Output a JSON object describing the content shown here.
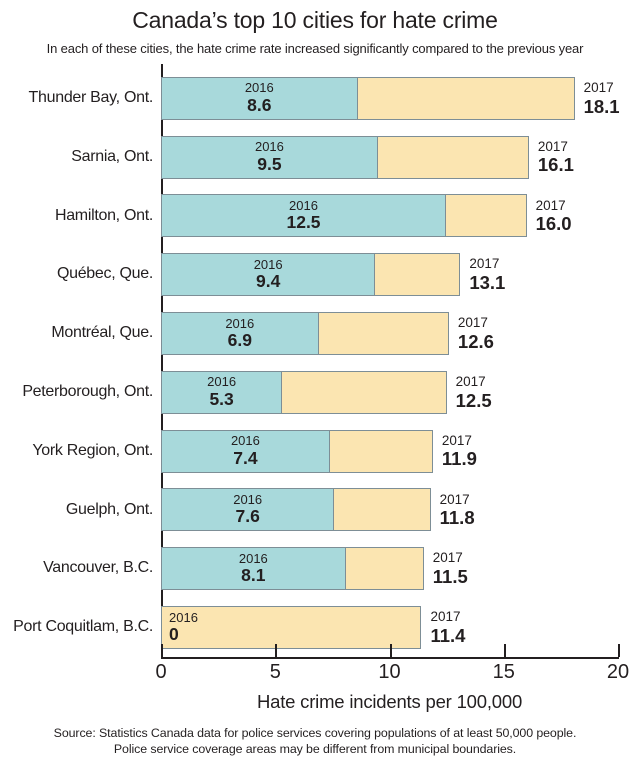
{
  "title": "Canada’s top 10 cities for hate crime",
  "subtitle": "In each of these cities, the hate crime rate increased significantly compared to the previous year",
  "chart_data": {
    "type": "bar",
    "orientation": "horizontal",
    "title": "Canada’s top 10 cities for hate crime",
    "xlabel": "Hate crime incidents per 100,000",
    "xlim": [
      0,
      20
    ],
    "xticks": [
      "0",
      "5",
      "10",
      "15",
      "20"
    ],
    "grid": false,
    "legend_position": "inline-labels",
    "series": [
      {
        "name": "2016",
        "color": "#a8d9db"
      },
      {
        "name": "2017",
        "color": "#fbe5b1"
      }
    ],
    "border_color": "#7d8e96",
    "axis_color": "#231f20",
    "categories": [
      "Thunder Bay, Ont.",
      "Sarnia, Ont.",
      "Hamilton, Ont.",
      "Québec, Que.",
      "Montréal, Que.",
      "Peterborough, Ont.",
      "York Region, Ont.",
      "Guelph, Ont.",
      "Vancouver, B.C.",
      "Port Coquitlam, B.C."
    ],
    "rows": [
      {
        "city": "Thunder Bay, Ont.",
        "value_2016": 8.6,
        "value_2017": 18.1,
        "label_2016": "8.6",
        "label_2017": "18.1"
      },
      {
        "city": "Sarnia, Ont.",
        "value_2016": 9.5,
        "value_2017": 16.1,
        "label_2016": "9.5",
        "label_2017": "16.1"
      },
      {
        "city": "Hamilton, Ont.",
        "value_2016": 12.5,
        "value_2017": 16.0,
        "label_2016": "12.5",
        "label_2017": "16.0"
      },
      {
        "city": "Québec, Que.",
        "value_2016": 9.4,
        "value_2017": 13.1,
        "label_2016": "9.4",
        "label_2017": "13.1"
      },
      {
        "city": "Montréal, Que.",
        "value_2016": 6.9,
        "value_2017": 12.6,
        "label_2016": "6.9",
        "label_2017": "12.6"
      },
      {
        "city": "Peterborough, Ont.",
        "value_2016": 5.3,
        "value_2017": 12.5,
        "label_2016": "5.3",
        "label_2017": "12.5"
      },
      {
        "city": "York Region, Ont.",
        "value_2016": 7.4,
        "value_2017": 11.9,
        "label_2016": "7.4",
        "label_2017": "11.9"
      },
      {
        "city": "Guelph, Ont.",
        "value_2016": 7.6,
        "value_2017": 11.8,
        "label_2016": "7.6",
        "label_2017": "11.8"
      },
      {
        "city": "Vancouver, B.C.",
        "value_2016": 8.1,
        "value_2017": 11.5,
        "label_2016": "8.1",
        "label_2017": "11.5"
      },
      {
        "city": "Port Coquitlam, B.C.",
        "value_2016": 0,
        "value_2017": 11.4,
        "label_2016": "0",
        "label_2017": "11.4"
      }
    ]
  },
  "source_line1": "Source: Statistics Canada data for police services covering populations of at least 50,000 people.",
  "source_line2": "Police service coverage areas may be different from municipal boundaries."
}
